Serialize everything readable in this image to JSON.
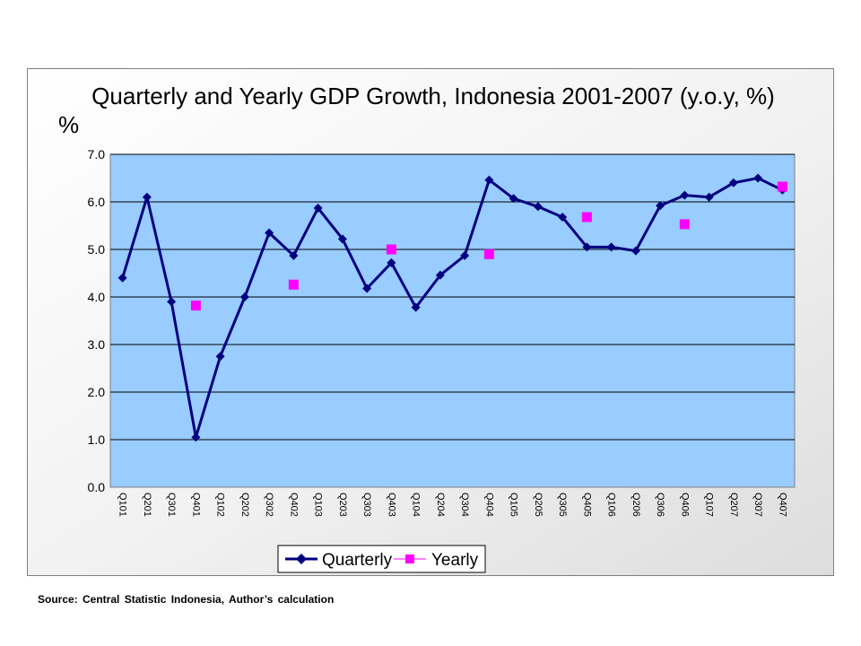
{
  "source_note": "Source: Central  Statistic Indonesia, Author’s  calculation",
  "colors": {
    "plot_background": "#99ccff",
    "quarterly_line": "#000080",
    "yearly_marker": "#ff00ff",
    "gridline": "#000000"
  },
  "chart_data": {
    "type": "line",
    "title": "Quarterly and Yearly GDP Growth, Indonesia 2001-2007 (y.o.y, %)",
    "ylabel": "%",
    "xlabel": "",
    "ylim": [
      0,
      7
    ],
    "yticks": [
      "0.0",
      "1.0",
      "2.0",
      "3.0",
      "4.0",
      "5.0",
      "6.0",
      "7.0"
    ],
    "grid": "horizontal",
    "legend_position": "bottom-center",
    "categories": [
      "Q101",
      "Q201",
      "Q301",
      "Q401",
      "Q102",
      "Q202",
      "Q302",
      "Q402",
      "Q103",
      "Q203",
      "Q303",
      "Q403",
      "Q104",
      "Q204",
      "Q304",
      "Q404",
      "Q105",
      "Q205",
      "Q305",
      "Q405",
      "Q106",
      "Q206",
      "Q306",
      "Q406",
      "Q107",
      "Q207",
      "Q307",
      "Q407"
    ],
    "series": [
      {
        "name": "Quarterly",
        "marker": "diamond",
        "values": [
          4.4,
          6.1,
          3.9,
          1.05,
          2.75,
          4.0,
          5.35,
          4.87,
          5.87,
          5.22,
          4.18,
          4.72,
          3.78,
          4.46,
          4.87,
          6.46,
          6.07,
          5.9,
          5.68,
          5.05,
          5.05,
          4.97,
          5.92,
          6.14,
          6.1,
          6.4,
          6.5,
          6.25
        ]
      },
      {
        "name": "Yearly",
        "marker": "square",
        "values": [
          null,
          null,
          null,
          3.82,
          null,
          null,
          null,
          4.26,
          null,
          null,
          null,
          5.0,
          null,
          null,
          null,
          4.9,
          null,
          null,
          null,
          5.68,
          null,
          null,
          null,
          5.53,
          null,
          null,
          null,
          6.32
        ]
      }
    ]
  }
}
